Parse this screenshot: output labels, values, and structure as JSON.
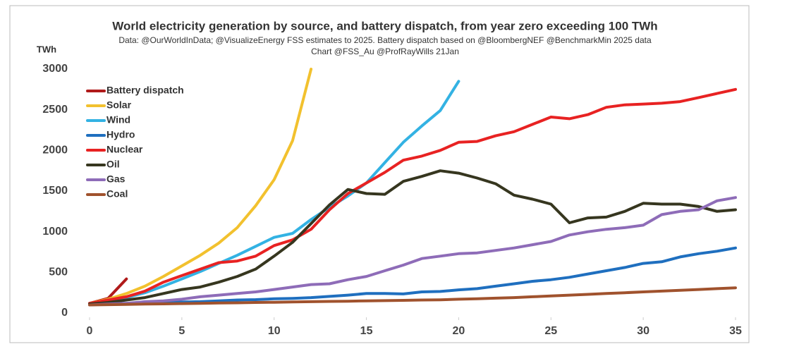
{
  "chart_data": {
    "type": "line",
    "title": "World electricity generation by source, and battery dispatch, from year zero exceeding 100 TWh",
    "subtitle": [
      "Data: @OurWorldInData; @VisualizeEnergy FSS estimates to 2025. Battery dispatch based on @BloombergNEF @BenchmarkMin 2025 data",
      "Chart @FSS_Au @ProfRayWills  21Jan"
    ],
    "y_label": "TWh",
    "x": [
      0,
      1,
      2,
      3,
      4,
      5,
      6,
      7,
      8,
      9,
      10,
      11,
      12,
      13,
      14,
      15,
      16,
      17,
      18,
      19,
      20,
      21,
      22,
      23,
      24,
      25,
      26,
      27,
      28,
      29,
      30,
      31,
      32,
      33,
      34,
      35
    ],
    "xlim": [
      0,
      35
    ],
    "xticks": [
      0,
      5,
      10,
      15,
      20,
      25,
      30,
      35
    ],
    "ylim": [
      0,
      3000
    ],
    "yticks": [
      0,
      500,
      1000,
      1500,
      2000,
      2500,
      3000
    ],
    "grid": false,
    "legend": "upper-left",
    "series": [
      {
        "name": "Battery dispatch",
        "color": "#b01a1a",
        "values": [
          120,
          180,
          420,
          null,
          null,
          null,
          null,
          null,
          null,
          null,
          null,
          null,
          null,
          null,
          null,
          null,
          null,
          null,
          null,
          null,
          null,
          null,
          null,
          null,
          null,
          null,
          null,
          null,
          null,
          null,
          null,
          null,
          null,
          null,
          null,
          null
        ]
      },
      {
        "name": "Solar",
        "color": "#f2c12e",
        "values": [
          120,
          170,
          240,
          330,
          450,
          580,
          710,
          860,
          1050,
          1320,
          1640,
          2120,
          3000,
          null,
          null,
          null,
          null,
          null,
          null,
          null,
          null,
          null,
          null,
          null,
          null,
          null,
          null,
          null,
          null,
          null,
          null,
          null,
          null,
          null,
          null,
          null
        ]
      },
      {
        "name": "Wind",
        "color": "#33b2e3",
        "values": [
          120,
          150,
          190,
          250,
          330,
          420,
          510,
          610,
          710,
          820,
          930,
          980,
          1150,
          1300,
          1440,
          1600,
          1850,
          2100,
          2300,
          2490,
          2850,
          null,
          null,
          null,
          null,
          null,
          null,
          null,
          null,
          null,
          null,
          null,
          null,
          null,
          null,
          null
        ]
      },
      {
        "name": "Hydro",
        "color": "#1f6fbf",
        "values": [
          110,
          115,
          120,
          125,
          130,
          135,
          140,
          150,
          160,
          165,
          175,
          180,
          190,
          205,
          220,
          240,
          240,
          235,
          260,
          265,
          285,
          300,
          330,
          360,
          390,
          410,
          440,
          480,
          520,
          560,
          610,
          630,
          690,
          730,
          760,
          800
        ]
      },
      {
        "name": "Nuclear",
        "color": "#e82222",
        "values": [
          120,
          160,
          200,
          270,
          380,
          460,
          540,
          620,
          640,
          700,
          830,
          900,
          1030,
          1270,
          1470,
          1600,
          1730,
          1880,
          1930,
          2000,
          2100,
          2110,
          2180,
          2230,
          2320,
          2410,
          2390,
          2440,
          2530,
          2560,
          2570,
          2580,
          2600,
          2650,
          2700,
          2750
        ]
      },
      {
        "name": "Oil",
        "color": "#36361f",
        "values": [
          110,
          130,
          160,
          190,
          240,
          290,
          320,
          380,
          450,
          540,
          700,
          870,
          1100,
          1330,
          1520,
          1470,
          1460,
          1620,
          1680,
          1750,
          1720,
          1660,
          1590,
          1450,
          1400,
          1340,
          1110,
          1170,
          1180,
          1250,
          1350,
          1340,
          1340,
          1310,
          1250,
          1270
        ]
      },
      {
        "name": "Gas",
        "color": "#8e6cb8",
        "values": [
          100,
          110,
          120,
          140,
          150,
          170,
          200,
          220,
          240,
          260,
          290,
          320,
          350,
          360,
          410,
          450,
          520,
          590,
          670,
          700,
          730,
          740,
          770,
          800,
          840,
          880,
          960,
          1000,
          1030,
          1050,
          1080,
          1210,
          1250,
          1270,
          1380,
          1420
        ]
      },
      {
        "name": "Coal",
        "color": "#a0522d",
        "values": [
          100,
          103,
          106,
          110,
          113,
          116,
          120,
          123,
          126,
          130,
          133,
          136,
          140,
          143,
          146,
          150,
          153,
          156,
          160,
          163,
          170,
          176,
          183,
          190,
          200,
          210,
          220,
          230,
          240,
          250,
          260,
          270,
          280,
          290,
          300,
          310
        ]
      }
    ]
  }
}
